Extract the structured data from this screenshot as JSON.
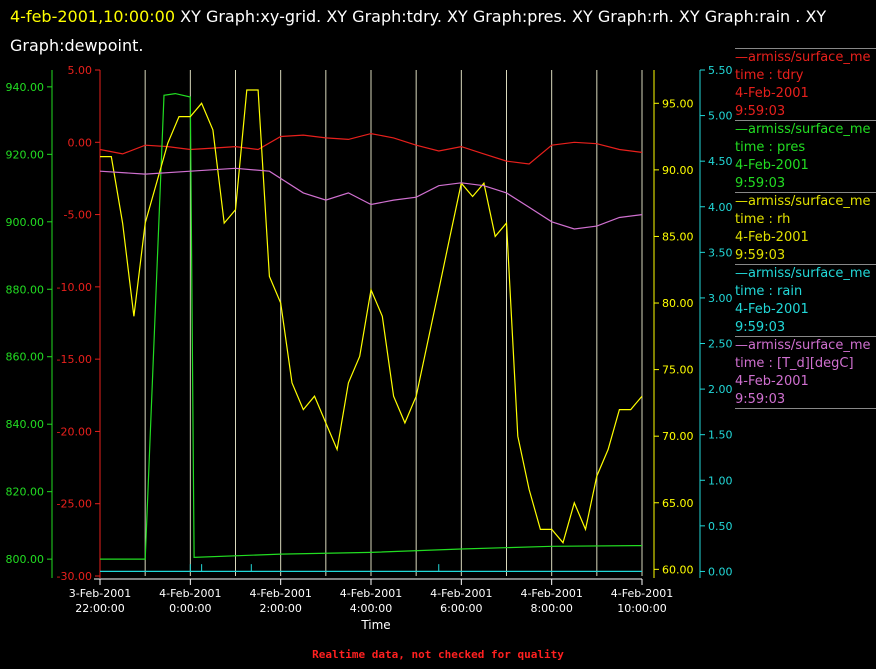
{
  "title": {
    "timestamp": "4-feb-2001,10:00:00",
    "rest": " XY Graph:xy-grid.  XY Graph:tdry.  XY Graph:pres.  XY Graph:rh.  XY Graph:rain . XY Graph:dewpoint."
  },
  "footer": "Realtime data, not checked for quality",
  "colors": {
    "tdry": "#e8201c",
    "pres": "#22dd22",
    "rh": "#ffff00",
    "rain": "#22d8d8",
    "dewpoint": "#d070d0",
    "grid": "#ffffdd"
  },
  "legend": [
    {
      "line": "—armiss/surface_me",
      "label": "time : tdry",
      "date": "4-Feb-2001",
      "time": "9:59:03",
      "color": "#e8201c"
    },
    {
      "line": "—armiss/surface_me",
      "label": "time : pres",
      "date": "4-Feb-2001",
      "time": "9:59:03",
      "color": "#22dd22"
    },
    {
      "line": "—armiss/surface_me",
      "label": "time : rh",
      "date": "4-Feb-2001",
      "time": "9:59:03",
      "color": "#e0e000"
    },
    {
      "line": "—armiss/surface_me",
      "label": "time : rain",
      "date": "4-Feb-2001",
      "time": "9:59:03",
      "color": "#22d8d8"
    },
    {
      "line": "—armiss/surface_me",
      "label": "time : [T_d][degC]",
      "date": "4-Feb-2001",
      "time": "9:59:03",
      "color": "#d070d0"
    }
  ],
  "chart_data": {
    "type": "line",
    "xlabel": "Time",
    "xlim": [
      "3-Feb-2001 22:00:00",
      "4-Feb-2001 10:00:00"
    ],
    "grid": "vertical lines at each hour",
    "x_ticks": [
      {
        "date": "3-Feb-2001",
        "time": "22:00:00"
      },
      {
        "date": "4-Feb-2001",
        "time": "0:00:00"
      },
      {
        "date": "4-Feb-2001",
        "time": "2:00:00"
      },
      {
        "date": "4-Feb-2001",
        "time": "4:00:00"
      },
      {
        "date": "4-Feb-2001",
        "time": "6:00:00"
      },
      {
        "date": "4-Feb-2001",
        "time": "8:00:00"
      },
      {
        "date": "4-Feb-2001",
        "time": "10:00:00"
      }
    ],
    "axes": {
      "pres": {
        "side": "left-outer",
        "color": "#22dd22",
        "ylim": [
          795,
          945
        ],
        "ticks": [
          "800.00",
          "820.00",
          "840.00",
          "860.00",
          "880.00",
          "900.00",
          "920.00",
          "940.00"
        ]
      },
      "tdry": {
        "side": "left-inner",
        "color": "#e8201c",
        "ylim": [
          -30,
          5
        ],
        "ticks": [
          "-30.00",
          "-25.00",
          "-20.00",
          "-15.00",
          "-10.00",
          "-5.00",
          "0.00",
          "5.00"
        ]
      },
      "rh": {
        "side": "right-inner",
        "color": "#ffff00",
        "ylim": [
          59.5,
          97.5
        ],
        "ticks": [
          "60.00",
          "65.00",
          "70.00",
          "75.00",
          "80.00",
          "85.00",
          "90.00",
          "95.00"
        ]
      },
      "rain": {
        "side": "right-outer",
        "color": "#22d8d8",
        "ylim": [
          -0.05,
          5.5
        ],
        "ticks": [
          "0.00",
          "0.50",
          "1.00",
          "1.50",
          "2.00",
          "2.50",
          "3.00",
          "3.50",
          "4.00",
          "4.50",
          "5.00",
          "5.50"
        ]
      }
    },
    "series": [
      {
        "name": "time : tdry",
        "axis": "tdry",
        "x": [
          "3-Feb-2001 22:00",
          "22:30",
          "23:00",
          "23:30",
          "4-Feb-2001 0:00",
          "0:30",
          "1:00",
          "1:30",
          "2:00",
          "2:30",
          "3:00",
          "3:30",
          "4:00",
          "4:30",
          "5:00",
          "5:30",
          "6:00",
          "6:30",
          "7:00",
          "7:30",
          "8:00",
          "8:30",
          "9:00",
          "9:30",
          "10:00"
        ],
        "y": [
          -0.5,
          -0.8,
          -0.2,
          -0.3,
          -0.5,
          -0.4,
          -0.3,
          -0.5,
          0.4,
          0.5,
          0.3,
          0.2,
          0.6,
          0.3,
          -0.2,
          -0.6,
          -0.3,
          -0.8,
          -1.3,
          -1.5,
          -0.2,
          0.0,
          -0.1,
          -0.5,
          -0.7
        ]
      },
      {
        "name": "time : pres",
        "axis": "pres",
        "x": [
          "3-Feb-2001 22:00",
          "23:00",
          "23:25",
          "23:40",
          "4-Feb-2001 0:00",
          "0:05",
          "2:00",
          "4:00",
          "6:00",
          "8:00",
          "10:00"
        ],
        "y": [
          800.0,
          800.0,
          937.5,
          938.0,
          937.0,
          800.5,
          801.5,
          802.0,
          803.0,
          803.8,
          804.0
        ]
      },
      {
        "name": "time : rh",
        "axis": "rh",
        "x": [
          "3-Feb-2001 22:00",
          "22:15",
          "22:30",
          "22:45",
          "23:00",
          "23:15",
          "23:30",
          "23:45",
          "4-Feb-2001 0:00",
          "0:15",
          "0:30",
          "0:45",
          "1:00",
          "1:15",
          "1:30",
          "1:45",
          "2:00",
          "2:15",
          "2:30",
          "2:45",
          "3:00",
          "3:15",
          "3:30",
          "3:45",
          "4:00",
          "4:15",
          "4:30",
          "4:45",
          "5:00",
          "5:15",
          "5:30",
          "5:45",
          "6:00",
          "6:15",
          "6:30",
          "6:45",
          "7:00",
          "7:15",
          "7:30",
          "7:45",
          "8:00",
          "8:15",
          "8:30",
          "8:45",
          "9:00",
          "9:15",
          "9:30",
          "9:45",
          "10:00"
        ],
        "y": [
          91,
          91,
          86,
          79,
          86,
          89,
          92,
          94,
          94,
          95,
          93,
          86,
          87,
          96,
          96,
          82,
          80,
          74,
          72,
          73,
          71,
          69,
          74,
          76,
          81,
          79,
          73,
          71,
          73,
          77,
          81,
          85,
          89,
          88,
          89,
          85,
          86,
          70,
          66,
          63,
          63,
          62,
          65,
          63,
          67,
          69,
          72,
          72,
          73
        ]
      },
      {
        "name": "time : rain",
        "axis": "rain",
        "x": [
          "3-Feb-2001 22:00",
          "4-Feb-2001 0:00",
          "1:20",
          "5:30",
          "10:00"
        ],
        "y": [
          0.0,
          0.0,
          0.0,
          0.0,
          0.0
        ]
      },
      {
        "name": "time : [T_d][degC]",
        "axis": "tdry",
        "x": [
          "3-Feb-2001 22:00",
          "23:00",
          "4-Feb-2001 0:00",
          "1:00",
          "1:45",
          "2:30",
          "3:00",
          "3:30",
          "4:00",
          "4:30",
          "5:00",
          "5:30",
          "6:00",
          "6:30",
          "7:00",
          "7:30",
          "8:00",
          "8:30",
          "9:00",
          "9:30",
          "10:00"
        ],
        "y": [
          -2.0,
          -2.2,
          -2.0,
          -1.8,
          -2.0,
          -3.5,
          -4.0,
          -3.5,
          -4.3,
          -4.0,
          -3.8,
          -3.0,
          -2.8,
          -3.0,
          -3.5,
          -4.5,
          -5.5,
          -6.0,
          -5.8,
          -5.2,
          -5.0
        ]
      }
    ]
  }
}
